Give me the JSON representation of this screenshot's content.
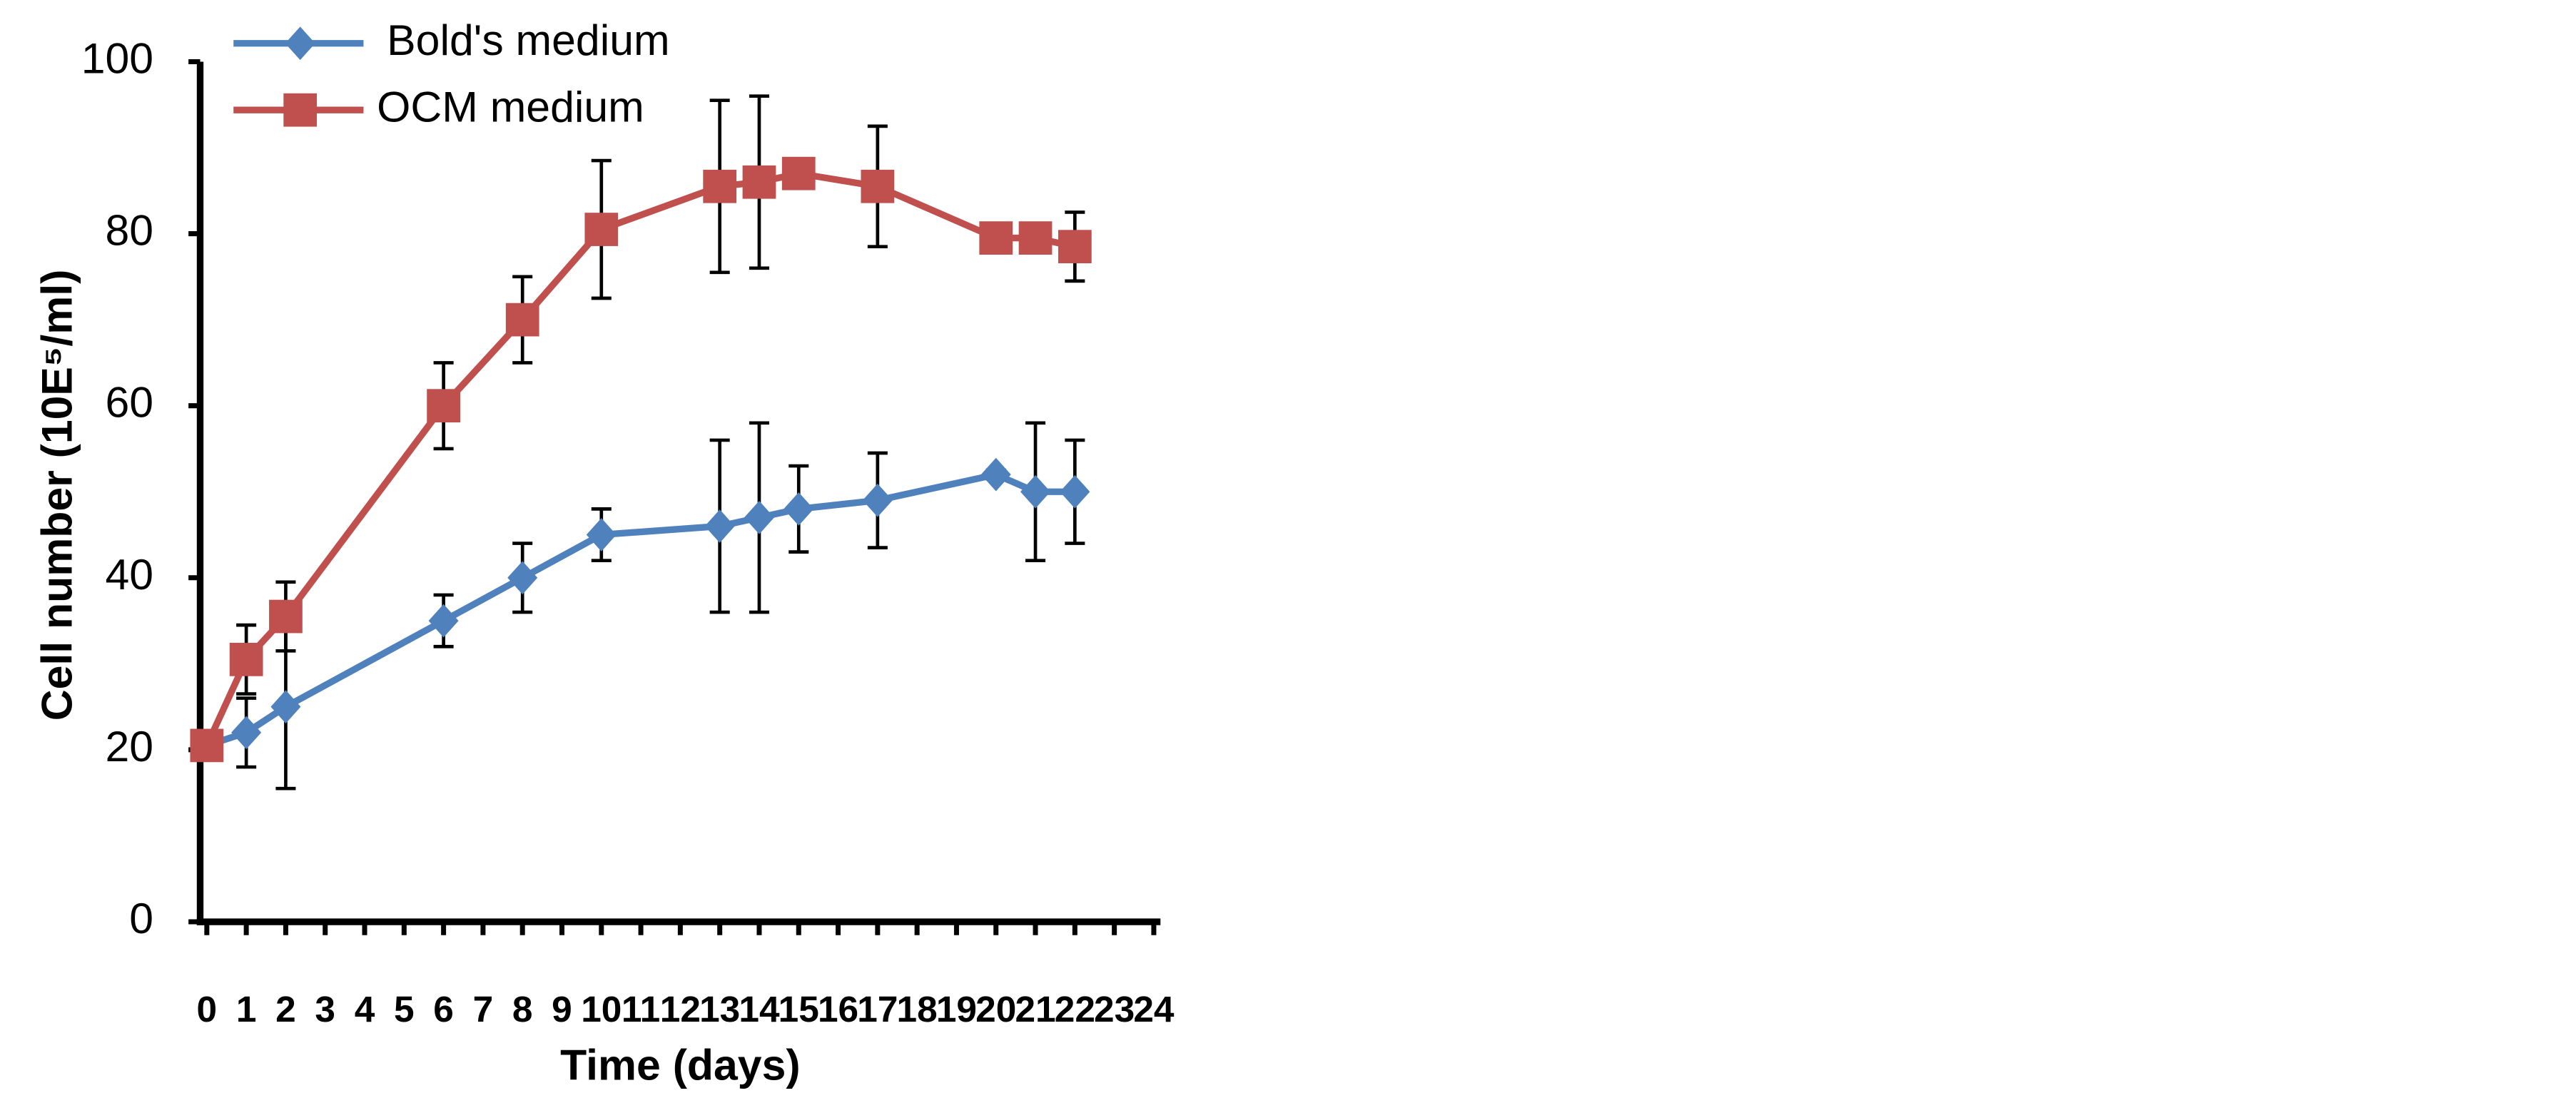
{
  "chart_data": {
    "type": "line",
    "xlabel": "Time (days)",
    "ylabel": "Cell number  (10E⁵/ml)",
    "xlim": [
      0,
      24
    ],
    "xticks": [
      0,
      1,
      2,
      3,
      4,
      5,
      6,
      7,
      8,
      9,
      10,
      11,
      12,
      13,
      14,
      15,
      16,
      17,
      18,
      19,
      20,
      21,
      22,
      23,
      24
    ],
    "ylim": [
      0,
      100
    ],
    "yticks": [
      0,
      20,
      40,
      60,
      80,
      100
    ],
    "legend": "top-left",
    "series": [
      {
        "name": "Bold's medium",
        "color": "#4f81bd",
        "marker": "diamond",
        "x": [
          0,
          1,
          2,
          6,
          8,
          10,
          13,
          14,
          15,
          17,
          20,
          21,
          22
        ],
        "values": [
          20.5,
          22,
          25,
          35,
          40,
          45,
          46,
          47,
          48,
          49,
          52,
          50,
          50
        ],
        "errors": [
          0,
          4,
          9.5,
          3,
          4,
          3,
          10,
          11,
          5,
          5.5,
          0.5,
          8,
          6
        ]
      },
      {
        "name": "OCM medium",
        "color": "#c0504d",
        "marker": "square",
        "x": [
          0,
          1,
          2,
          6,
          8,
          10,
          13,
          14,
          15,
          17,
          20,
          21,
          22
        ],
        "values": [
          20.5,
          30.5,
          35.5,
          60,
          70,
          80.5,
          85.5,
          86,
          87,
          85.5,
          79.5,
          79.5,
          78.5
        ],
        "errors": [
          0,
          4,
          4,
          5,
          5,
          8,
          10,
          10,
          0,
          7,
          0,
          0,
          4
        ]
      }
    ]
  }
}
